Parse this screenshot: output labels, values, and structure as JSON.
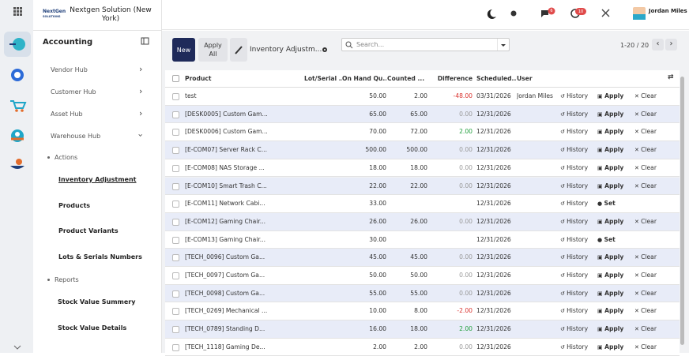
{
  "header": {
    "logo": {
      "top": "NextGen",
      "bottom": "SOLUTIONS"
    },
    "company": "Nextgen Solution (New York)",
    "badges": [
      "6",
      "10"
    ],
    "user": "Jordan Miles"
  },
  "sidebar": {
    "title": "Accounting",
    "menus": [
      "Vendor Hub",
      "Customer Hub",
      "Asset Hub",
      "Warehouse Hub"
    ],
    "actions_label": "Actions",
    "actions": [
      "Inventory Adjustment",
      "Products",
      "Product Variants",
      "Lots & Serials Numbers"
    ],
    "reports_label": "Reports",
    "reports": [
      "Stock Value Summery",
      "Stock Value Details"
    ]
  },
  "toolbar": {
    "new": "New",
    "apply_all": "Apply All",
    "breadcrumb": "Inventory Adjustm...",
    "search": "Search...",
    "pager": "1-20 / 20"
  },
  "table": {
    "columns": [
      "Product",
      "Lot/Serial ...",
      "On Hand Qu...",
      "Counted ...",
      "Difference",
      "Scheduled...",
      "User"
    ],
    "rows": [
      {
        "cells": [
          "test",
          "",
          "50.00",
          "2.00",
          "-48.00",
          "03/31/2026",
          "Jordan Miles"
        ],
        "actions": [
          "History",
          "Apply",
          "Clear"
        ]
      },
      {
        "cells": [
          "[DESK0005] Custom Gam...",
          "",
          "65.00",
          "65.00",
          "0.00",
          "12/31/2026",
          ""
        ],
        "actions": [
          "History",
          "Apply",
          "Clear"
        ]
      },
      {
        "cells": [
          "[DESK0006] Custom Gam...",
          "",
          "70.00",
          "72.00",
          "2.00",
          "12/31/2026",
          ""
        ],
        "actions": [
          "History",
          "Apply",
          "Clear"
        ]
      },
      {
        "cells": [
          "[E-COM07] Server Rack C...",
          "",
          "500.00",
          "500.00",
          "0.00",
          "12/31/2026",
          ""
        ],
        "actions": [
          "History",
          "Apply",
          "Clear"
        ]
      },
      {
        "cells": [
          "[E-COM08] NAS Storage ...",
          "",
          "18.00",
          "18.00",
          "0.00",
          "12/31/2026",
          ""
        ],
        "actions": [
          "History",
          "Apply",
          "Clear"
        ]
      },
      {
        "cells": [
          "[E-COM10] Smart Trash C...",
          "",
          "22.00",
          "22.00",
          "0.00",
          "12/31/2026",
          ""
        ],
        "actions": [
          "History",
          "Apply",
          "Clear"
        ]
      },
      {
        "cells": [
          "[E-COM11] Network Cabi...",
          "",
          "33.00",
          "",
          "",
          "12/31/2026",
          ""
        ],
        "actions": [
          "History",
          "Set"
        ]
      },
      {
        "cells": [
          "[E-COM12] Gaming Chair...",
          "",
          "26.00",
          "26.00",
          "0.00",
          "12/31/2026",
          ""
        ],
        "actions": [
          "History",
          "Apply",
          "Clear"
        ]
      },
      {
        "cells": [
          "[E-COM13] Gaming Chair...",
          "",
          "30.00",
          "",
          "",
          "12/31/2026",
          ""
        ],
        "actions": [
          "History",
          "Set"
        ]
      },
      {
        "cells": [
          "[TECH_0096] Custom Ga...",
          "",
          "45.00",
          "45.00",
          "0.00",
          "12/31/2026",
          ""
        ],
        "actions": [
          "History",
          "Apply",
          "Clear"
        ]
      },
      {
        "cells": [
          "[TECH_0097] Custom Ga...",
          "",
          "50.00",
          "50.00",
          "0.00",
          "12/31/2026",
          ""
        ],
        "actions": [
          "History",
          "Apply",
          "Clear"
        ]
      },
      {
        "cells": [
          "[TECH_0098] Custom Ga...",
          "",
          "55.00",
          "55.00",
          "0.00",
          "12/31/2026",
          ""
        ],
        "actions": [
          "History",
          "Apply",
          "Clear"
        ]
      },
      {
        "cells": [
          "[TECH_0269] Mechanical ...",
          "",
          "10.00",
          "8.00",
          "-2.00",
          "12/31/2026",
          ""
        ],
        "actions": [
          "History",
          "Apply",
          "Clear"
        ]
      },
      {
        "cells": [
          "[TECH_0789] Standing D...",
          "",
          "16.00",
          "18.00",
          "2.00",
          "12/31/2026",
          ""
        ],
        "actions": [
          "History",
          "Apply",
          "Clear"
        ]
      },
      {
        "cells": [
          "[TECH_1118] Gaming De...",
          "",
          "2.00",
          "2.00",
          "0.00",
          "12/31/2026",
          ""
        ],
        "actions": [
          "History",
          "Apply",
          "Clear"
        ]
      }
    ]
  }
}
